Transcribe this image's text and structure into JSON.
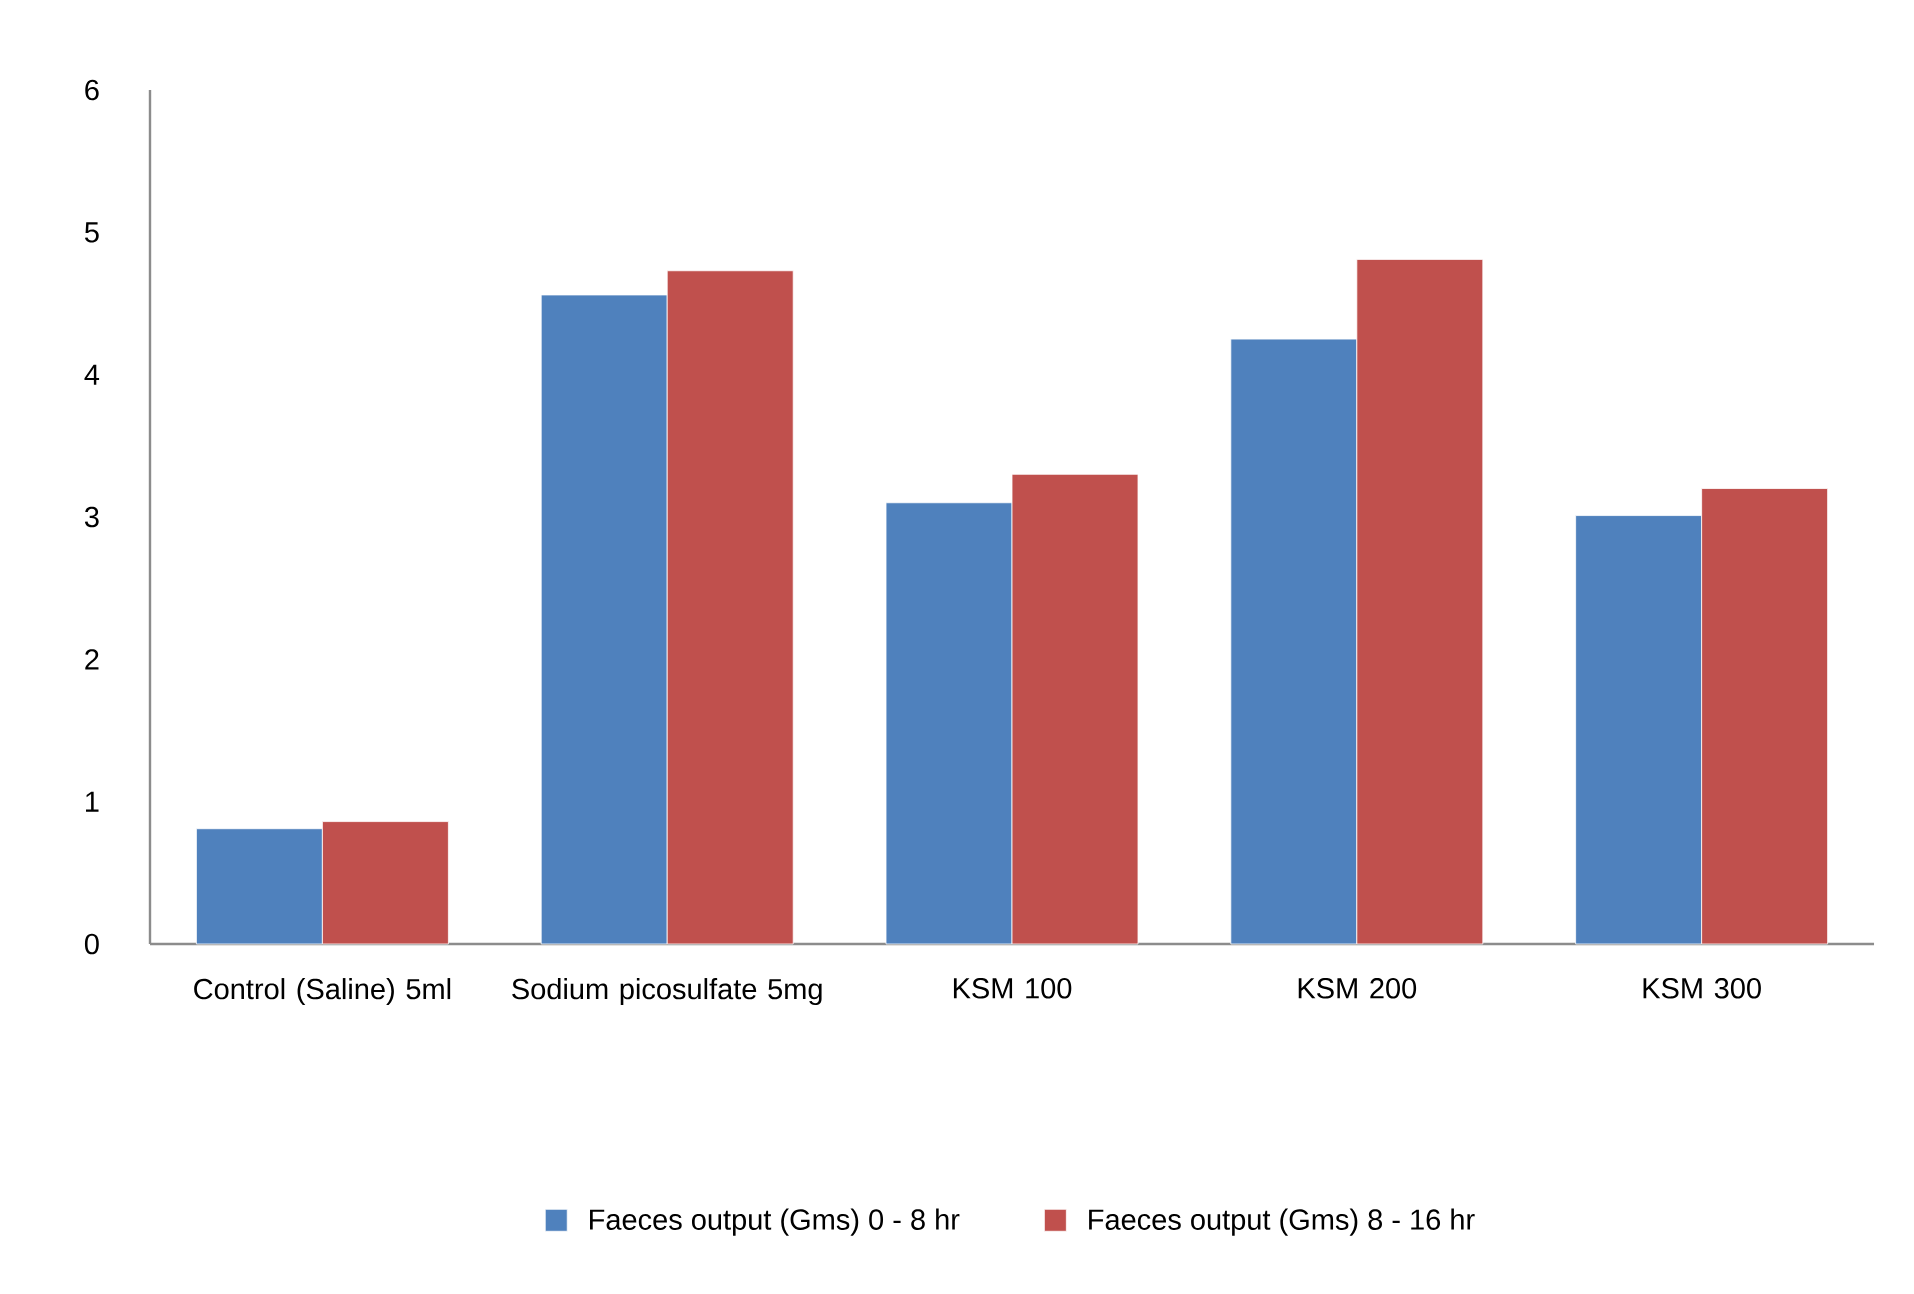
{
  "chart_data": {
    "type": "bar",
    "categories": [
      "Control (Saline) 5ml",
      "Sodium picosulfate 5mg",
      "KSM 100",
      "KSM 200",
      "KSM 300"
    ],
    "series": [
      {
        "name": "Faeces output  (Gms) 0 - 8 hr",
        "color": "#4f81bd",
        "values": [
          0.81,
          4.56,
          3.1,
          4.25,
          3.01
        ]
      },
      {
        "name": "Faeces output  (Gms) 8 - 16 hr",
        "color": "#c0504d",
        "values": [
          0.86,
          4.73,
          3.3,
          4.81,
          3.2
        ]
      }
    ],
    "ylim": [
      0,
      6
    ],
    "yticks": [
      0,
      1,
      2,
      3,
      4,
      5,
      6
    ],
    "grid": false,
    "legend": "bottom"
  }
}
